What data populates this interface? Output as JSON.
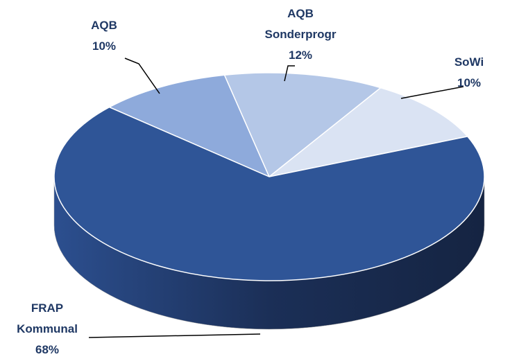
{
  "chart_data": {
    "type": "pie3d",
    "categories": [
      "AQB",
      "AQB Sonderprogr",
      "SoWi",
      "FRAP Kommunal"
    ],
    "values": [
      10,
      12,
      10,
      68
    ],
    "value_labels": [
      "10%",
      "12%",
      "10%",
      "68%"
    ],
    "colors": [
      "#8eaadb",
      "#b4c7e7",
      "#dae3f3",
      "#2f5597"
    ]
  }
}
